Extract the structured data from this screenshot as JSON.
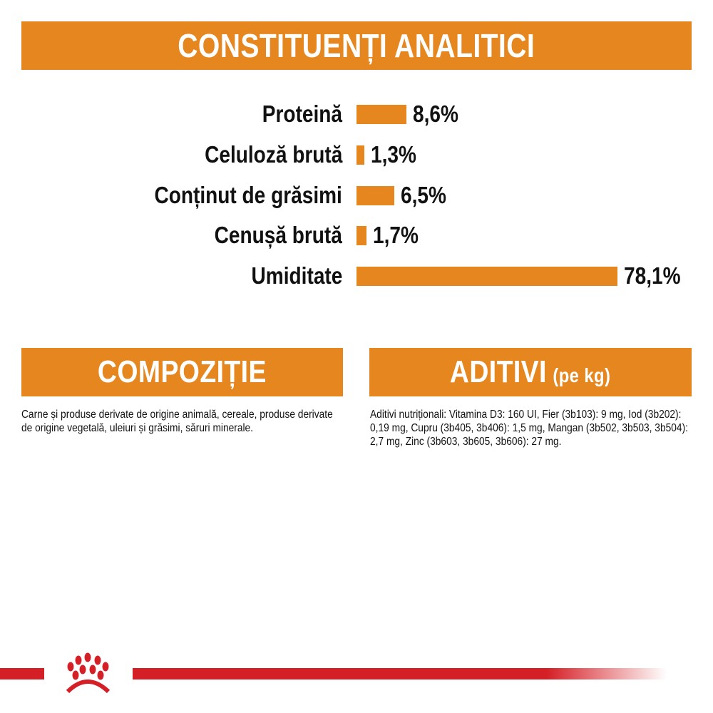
{
  "header": {
    "title": "CONSTITUENȚI ANALITICI"
  },
  "chart_data": {
    "type": "bar",
    "orientation": "horizontal",
    "categories": [
      "Proteină",
      "Celuloză brută",
      "Conținut de grăsimi",
      "Cenușă brută",
      "Umiditate"
    ],
    "values": [
      8.6,
      1.3,
      6.5,
      1.7,
      78.1
    ],
    "value_labels": [
      "8,6%",
      "1,3%",
      "6,5%",
      "1,7%",
      "78,1%"
    ],
    "unit": "%",
    "bar_color": "#e5861e",
    "grid": false
  },
  "composition": {
    "title": "COMPOZIȚIE",
    "text": "Carne și produse derivate de origine animală, cereale, produse derivate de origine vegetală, uleiuri și grăsimi, săruri minerale."
  },
  "additives": {
    "title": "ADITIVI",
    "title_suffix": "(pe kg)",
    "text": "Aditivi nutriționali: Vitamina D3: 160 UI, Fier (3b103): 9 mg, Iod (3b202): 0,19 mg, Cupru (3b405, 3b406): 1,5 mg, Mangan (3b502, 3b503, 3b504): 2,7 mg, Zinc (3b603, 3b605, 3b606): 27 mg."
  },
  "colors": {
    "accent": "#e5861e",
    "brand_red": "#d51f26"
  },
  "logo": {
    "icon": "royal-canin-crown-logo"
  }
}
